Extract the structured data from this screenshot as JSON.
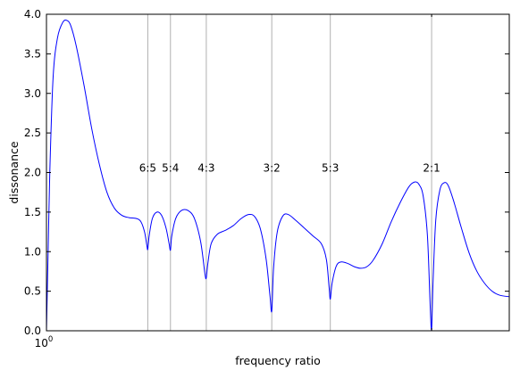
{
  "chart_data": {
    "type": "line",
    "title": "",
    "xlabel": "frequency ratio",
    "ylabel": "dissonance",
    "x_scale": "log",
    "xlim": [
      1.0,
      2.3
    ],
    "ylim": [
      0.0,
      4.0
    ],
    "x_tick_labels": [
      {
        "value": 1.0,
        "base": "10",
        "exp": "0"
      }
    ],
    "y_ticks": [
      0.0,
      0.5,
      1.0,
      1.5,
      2.0,
      2.5,
      3.0,
      3.5,
      4.0
    ],
    "y_tick_labels": [
      "0.0",
      "0.5",
      "1.0",
      "1.5",
      "2.0",
      "2.5",
      "3.0",
      "3.5",
      "4.0"
    ],
    "grid": false,
    "line_color": "#0000ff",
    "marker_line_color": "#b0b0b0",
    "annotation_y": 2.0,
    "annotations": [
      {
        "label": "6:5",
        "x": 1.2
      },
      {
        "label": "5:4",
        "x": 1.25
      },
      {
        "label": "4:3",
        "x": 1.3333
      },
      {
        "label": "3:2",
        "x": 1.5
      },
      {
        "label": "5:3",
        "x": 1.6667
      },
      {
        "label": "2:1",
        "x": 2.0
      }
    ],
    "series": [
      {
        "points": [
          [
            1.0,
            0.0
          ],
          [
            1.003,
            1.0
          ],
          [
            1.006,
            2.0
          ],
          [
            1.012,
            3.2
          ],
          [
            1.02,
            3.7
          ],
          [
            1.03,
            3.9
          ],
          [
            1.038,
            3.92
          ],
          [
            1.045,
            3.85
          ],
          [
            1.055,
            3.6
          ],
          [
            1.07,
            3.1
          ],
          [
            1.085,
            2.55
          ],
          [
            1.1,
            2.1
          ],
          [
            1.115,
            1.75
          ],
          [
            1.13,
            1.55
          ],
          [
            1.145,
            1.46
          ],
          [
            1.16,
            1.43
          ],
          [
            1.175,
            1.42
          ],
          [
            1.185,
            1.38
          ],
          [
            1.193,
            1.25
          ],
          [
            1.198,
            1.08
          ],
          [
            1.2,
            1.03
          ],
          [
            1.203,
            1.2
          ],
          [
            1.21,
            1.42
          ],
          [
            1.22,
            1.5
          ],
          [
            1.23,
            1.46
          ],
          [
            1.24,
            1.3
          ],
          [
            1.247,
            1.1
          ],
          [
            1.25,
            1.02
          ],
          [
            1.253,
            1.2
          ],
          [
            1.262,
            1.42
          ],
          [
            1.275,
            1.52
          ],
          [
            1.29,
            1.52
          ],
          [
            1.305,
            1.42
          ],
          [
            1.32,
            1.12
          ],
          [
            1.33,
            0.72
          ],
          [
            1.3333,
            0.67
          ],
          [
            1.337,
            0.85
          ],
          [
            1.345,
            1.1
          ],
          [
            1.36,
            1.22
          ],
          [
            1.38,
            1.27
          ],
          [
            1.4,
            1.33
          ],
          [
            1.42,
            1.42
          ],
          [
            1.44,
            1.47
          ],
          [
            1.455,
            1.44
          ],
          [
            1.47,
            1.28
          ],
          [
            1.485,
            0.9
          ],
          [
            1.495,
            0.45
          ],
          [
            1.5,
            0.25
          ],
          [
            1.505,
            0.8
          ],
          [
            1.515,
            1.25
          ],
          [
            1.53,
            1.45
          ],
          [
            1.545,
            1.47
          ],
          [
            1.565,
            1.4
          ],
          [
            1.59,
            1.3
          ],
          [
            1.615,
            1.2
          ],
          [
            1.64,
            1.1
          ],
          [
            1.655,
            0.9
          ],
          [
            1.663,
            0.55
          ],
          [
            1.6667,
            0.4
          ],
          [
            1.672,
            0.6
          ],
          [
            1.685,
            0.82
          ],
          [
            1.7,
            0.87
          ],
          [
            1.72,
            0.85
          ],
          [
            1.74,
            0.81
          ],
          [
            1.76,
            0.79
          ],
          [
            1.78,
            0.81
          ],
          [
            1.8,
            0.89
          ],
          [
            1.83,
            1.1
          ],
          [
            1.86,
            1.38
          ],
          [
            1.89,
            1.62
          ],
          [
            1.92,
            1.82
          ],
          [
            1.94,
            1.88
          ],
          [
            1.955,
            1.85
          ],
          [
            1.97,
            1.7
          ],
          [
            1.985,
            1.2
          ],
          [
            1.995,
            0.3
          ],
          [
            2.0,
            0.02
          ],
          [
            2.005,
            0.6
          ],
          [
            2.015,
            1.4
          ],
          [
            2.03,
            1.78
          ],
          [
            2.045,
            1.87
          ],
          [
            2.06,
            1.84
          ],
          [
            2.08,
            1.65
          ],
          [
            2.11,
            1.3
          ],
          [
            2.14,
            0.98
          ],
          [
            2.17,
            0.75
          ],
          [
            2.2,
            0.6
          ],
          [
            2.23,
            0.5
          ],
          [
            2.26,
            0.45
          ],
          [
            2.3,
            0.43
          ]
        ]
      }
    ]
  }
}
